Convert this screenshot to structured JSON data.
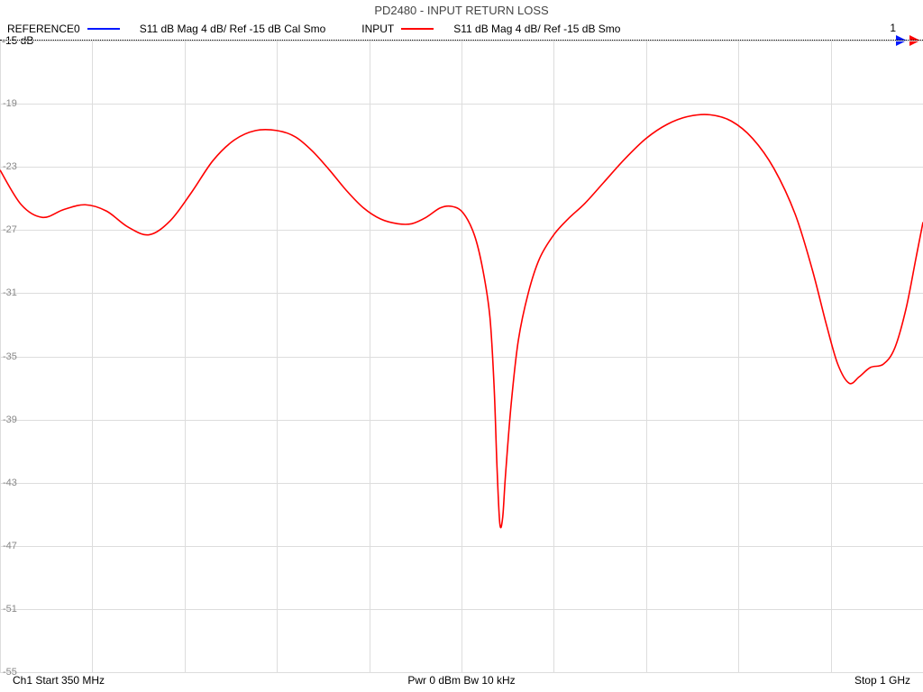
{
  "title": "PD2480 - INPUT RETURN LOSS",
  "legend": {
    "trace1": {
      "name": "REFERENCE0",
      "color": "#0018ff",
      "desc": "S11  dB Mag  4 dB/ Ref -15 dB  Cal Smo"
    },
    "trace2": {
      "name": "INPUT",
      "color": "#ff0000",
      "desc": "S11  dB Mag  4 dB/ Ref -15 dB  Smo"
    }
  },
  "marker_index": "1",
  "ref_label": "-15 dB",
  "chart": {
    "type": "line",
    "background_color": "#ffffff",
    "grid_color": "#dddddd",
    "line_color_active": "#ff0000",
    "line_width": 1.6,
    "x_start_label": "Ch1  Start  350 MHz",
    "x_center_label": "Pwr  0 dBm  Bw  10 kHz",
    "x_stop_label": "Stop  1 GHz",
    "xlim": [
      350,
      1000
    ],
    "ylim": [
      -55,
      -15
    ],
    "y_ticks": [
      -15,
      -19,
      -23,
      -27,
      -31,
      -35,
      -39,
      -43,
      -47,
      -51,
      -55
    ],
    "x_divisions": 10,
    "series": [
      {
        "x": 350,
        "y": -23.2
      },
      {
        "x": 365,
        "y": -25.4
      },
      {
        "x": 380,
        "y": -26.2
      },
      {
        "x": 395,
        "y": -25.7
      },
      {
        "x": 410,
        "y": -25.4
      },
      {
        "x": 425,
        "y": -25.8
      },
      {
        "x": 440,
        "y": -26.8
      },
      {
        "x": 455,
        "y": -27.3
      },
      {
        "x": 470,
        "y": -26.4
      },
      {
        "x": 485,
        "y": -24.6
      },
      {
        "x": 500,
        "y": -22.6
      },
      {
        "x": 515,
        "y": -21.3
      },
      {
        "x": 530,
        "y": -20.7
      },
      {
        "x": 545,
        "y": -20.7
      },
      {
        "x": 558,
        "y": -21.1
      },
      {
        "x": 570,
        "y": -22.0
      },
      {
        "x": 582,
        "y": -23.2
      },
      {
        "x": 594,
        "y": -24.5
      },
      {
        "x": 606,
        "y": -25.6
      },
      {
        "x": 618,
        "y": -26.3
      },
      {
        "x": 630,
        "y": -26.6
      },
      {
        "x": 640,
        "y": -26.6
      },
      {
        "x": 650,
        "y": -26.2
      },
      {
        "x": 660,
        "y": -25.6
      },
      {
        "x": 668,
        "y": -25.5
      },
      {
        "x": 676,
        "y": -25.9
      },
      {
        "x": 684,
        "y": -27.3
      },
      {
        "x": 690,
        "y": -29.5
      },
      {
        "x": 695,
        "y": -32.5
      },
      {
        "x": 698,
        "y": -37.0
      },
      {
        "x": 700,
        "y": -42.0
      },
      {
        "x": 702,
        "y": -45.6
      },
      {
        "x": 704,
        "y": -45.2
      },
      {
        "x": 706,
        "y": -42.5
      },
      {
        "x": 710,
        "y": -38.0
      },
      {
        "x": 715,
        "y": -34.0
      },
      {
        "x": 722,
        "y": -31.0
      },
      {
        "x": 730,
        "y": -28.8
      },
      {
        "x": 740,
        "y": -27.3
      },
      {
        "x": 750,
        "y": -26.3
      },
      {
        "x": 762,
        "y": -25.3
      },
      {
        "x": 775,
        "y": -24.0
      },
      {
        "x": 790,
        "y": -22.5
      },
      {
        "x": 805,
        "y": -21.2
      },
      {
        "x": 820,
        "y": -20.3
      },
      {
        "x": 835,
        "y": -19.8
      },
      {
        "x": 850,
        "y": -19.7
      },
      {
        "x": 865,
        "y": -20.1
      },
      {
        "x": 880,
        "y": -21.2
      },
      {
        "x": 895,
        "y": -23.1
      },
      {
        "x": 910,
        "y": -26.0
      },
      {
        "x": 922,
        "y": -29.5
      },
      {
        "x": 932,
        "y": -33.0
      },
      {
        "x": 940,
        "y": -35.5
      },
      {
        "x": 948,
        "y": -36.7
      },
      {
        "x": 955,
        "y": -36.3
      },
      {
        "x": 963,
        "y": -35.7
      },
      {
        "x": 972,
        "y": -35.5
      },
      {
        "x": 980,
        "y": -34.5
      },
      {
        "x": 988,
        "y": -32.0
      },
      {
        "x": 995,
        "y": -28.8
      },
      {
        "x": 1000,
        "y": -26.5
      }
    ]
  },
  "marker_arrows": {
    "blue": "#0018ff",
    "red": "#ff0000"
  }
}
